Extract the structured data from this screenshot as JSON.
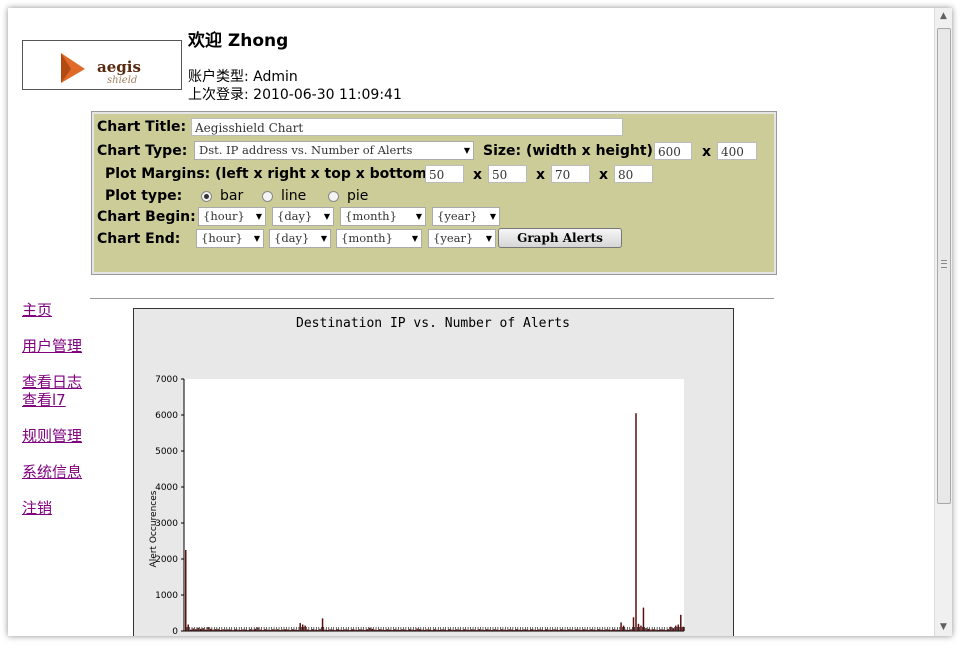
{
  "header": {
    "logo_text": "aegis",
    "logo_subtext": "shield",
    "welcome": "欢迎 Zhong",
    "account_type": "账户类型: Admin",
    "last_login": "上次登录: 2010-06-30 11:09:41"
  },
  "form": {
    "title_label": "Chart Title:",
    "title_value": "Aegisshield Chart",
    "type_label": "Chart Type:",
    "type_value": "Dst. IP address vs. Number of Alerts",
    "size_label": "Size: (width x height)",
    "width": "600",
    "height": "400",
    "x": "x",
    "margins_label": "Plot Margins: (left x right x top x bottom)",
    "margin_left": "50",
    "margin_right": "50",
    "margin_top": "70",
    "margin_bottom": "80",
    "plot_type_label": "Plot type:",
    "plot_types": [
      "bar",
      "line",
      "pie"
    ],
    "begin_label": "Chart Begin:",
    "end_label": "Chart End:",
    "hour": "{hour}",
    "day": "{day}",
    "month": "{month}",
    "year": "{year}",
    "graph_button": "Graph Alerts"
  },
  "nav": [
    "主页",
    "用户管理",
    "查看日志",
    "查看l7",
    "规则管理",
    "系统信息",
    "注销"
  ],
  "colors": {
    "panel": "#cccc99",
    "link": "#800080",
    "bar": "#5a0f0f"
  },
  "chart_data": {
    "type": "bar",
    "title": "Destination IP vs. Number of Alerts",
    "ylabel": "Alert Occurences",
    "xlabel": "",
    "ylim": [
      0,
      7000
    ],
    "yticks": [
      0,
      1000,
      2000,
      3000,
      4000,
      5000,
      6000,
      7000
    ],
    "values": [
      2250,
      180,
      40,
      70,
      50,
      90,
      60,
      80,
      40,
      110,
      60,
      40,
      50,
      60,
      30,
      50,
      40,
      50,
      40,
      30,
      50,
      40,
      30,
      50,
      40,
      30,
      50,
      40,
      60,
      100,
      40,
      30,
      50,
      40,
      30,
      50,
      40,
      50,
      30,
      40,
      50,
      40,
      30,
      50,
      40,
      30,
      220,
      180,
      150,
      40,
      30,
      50,
      40,
      30,
      60,
      350,
      40,
      30,
      50,
      40,
      30,
      50,
      40,
      30,
      50,
      40,
      30,
      50,
      40,
      30,
      50,
      40,
      30,
      50,
      90,
      60,
      40,
      30,
      50,
      40,
      30,
      50,
      40,
      30,
      50,
      40,
      30,
      50,
      40,
      30,
      50,
      40,
      30,
      70,
      50,
      40,
      30,
      50,
      40,
      30,
      50,
      40,
      30,
      50,
      40,
      30,
      50,
      40,
      30,
      50,
      40,
      30,
      50,
      40,
      30,
      50,
      40,
      30,
      50,
      40,
      30,
      50,
      40,
      30,
      50,
      40,
      30,
      50,
      40,
      30,
      50,
      40,
      30,
      50,
      40,
      30,
      50,
      40,
      30,
      50,
      40,
      30,
      50,
      40,
      30,
      50,
      40,
      30,
      50,
      40,
      30,
      50,
      40,
      30,
      50,
      40,
      30,
      50,
      40,
      30,
      50,
      40,
      30,
      50,
      40,
      30,
      50,
      40,
      30,
      50,
      40,
      30,
      50,
      40,
      30,
      240,
      150,
      40,
      30,
      50,
      380,
      6050,
      200,
      150,
      650,
      80,
      60,
      40,
      50,
      40,
      30,
      50,
      40,
      30,
      50,
      120,
      80,
      150,
      180,
      450,
      120
    ]
  }
}
